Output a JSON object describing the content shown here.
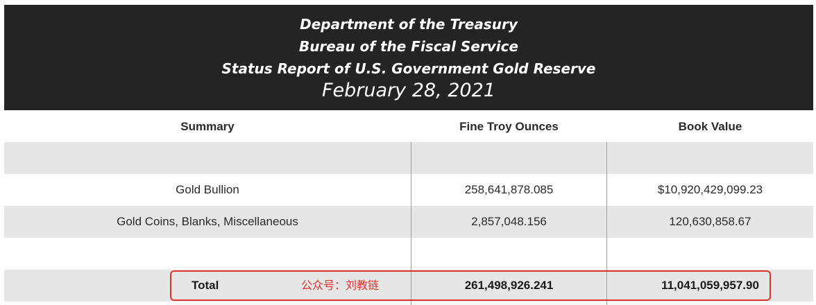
{
  "banner": {
    "line1": "Department of the Treasury",
    "line2": "Bureau of the Fiscal Service",
    "line3": "Status Report of U.S. Government Gold Reserve",
    "date": "February 28, 2021"
  },
  "table": {
    "headers": [
      "Summary",
      "Fine Troy Ounces",
      "Book Value"
    ],
    "rows": [
      {
        "summary": "",
        "ounces": "",
        "value": ""
      },
      {
        "summary": "Gold Bullion",
        "ounces": "258,641,878.085",
        "value": "$10,920,429,099.23"
      },
      {
        "summary": "Gold Coins, Blanks, Miscellaneous",
        "ounces": "2,857,048.156",
        "value": "120,630,858.67"
      },
      {
        "summary": "",
        "ounces": "",
        "value": ""
      }
    ],
    "total": {
      "label": "Total",
      "ounces": "261,498,926.241",
      "value": "11,041,059,957.90"
    }
  },
  "watermark": "公众号：刘教链",
  "colors": {
    "banner_bg": "#242424",
    "row_shade": "#e6e6e6",
    "highlight": "#e0322c"
  }
}
